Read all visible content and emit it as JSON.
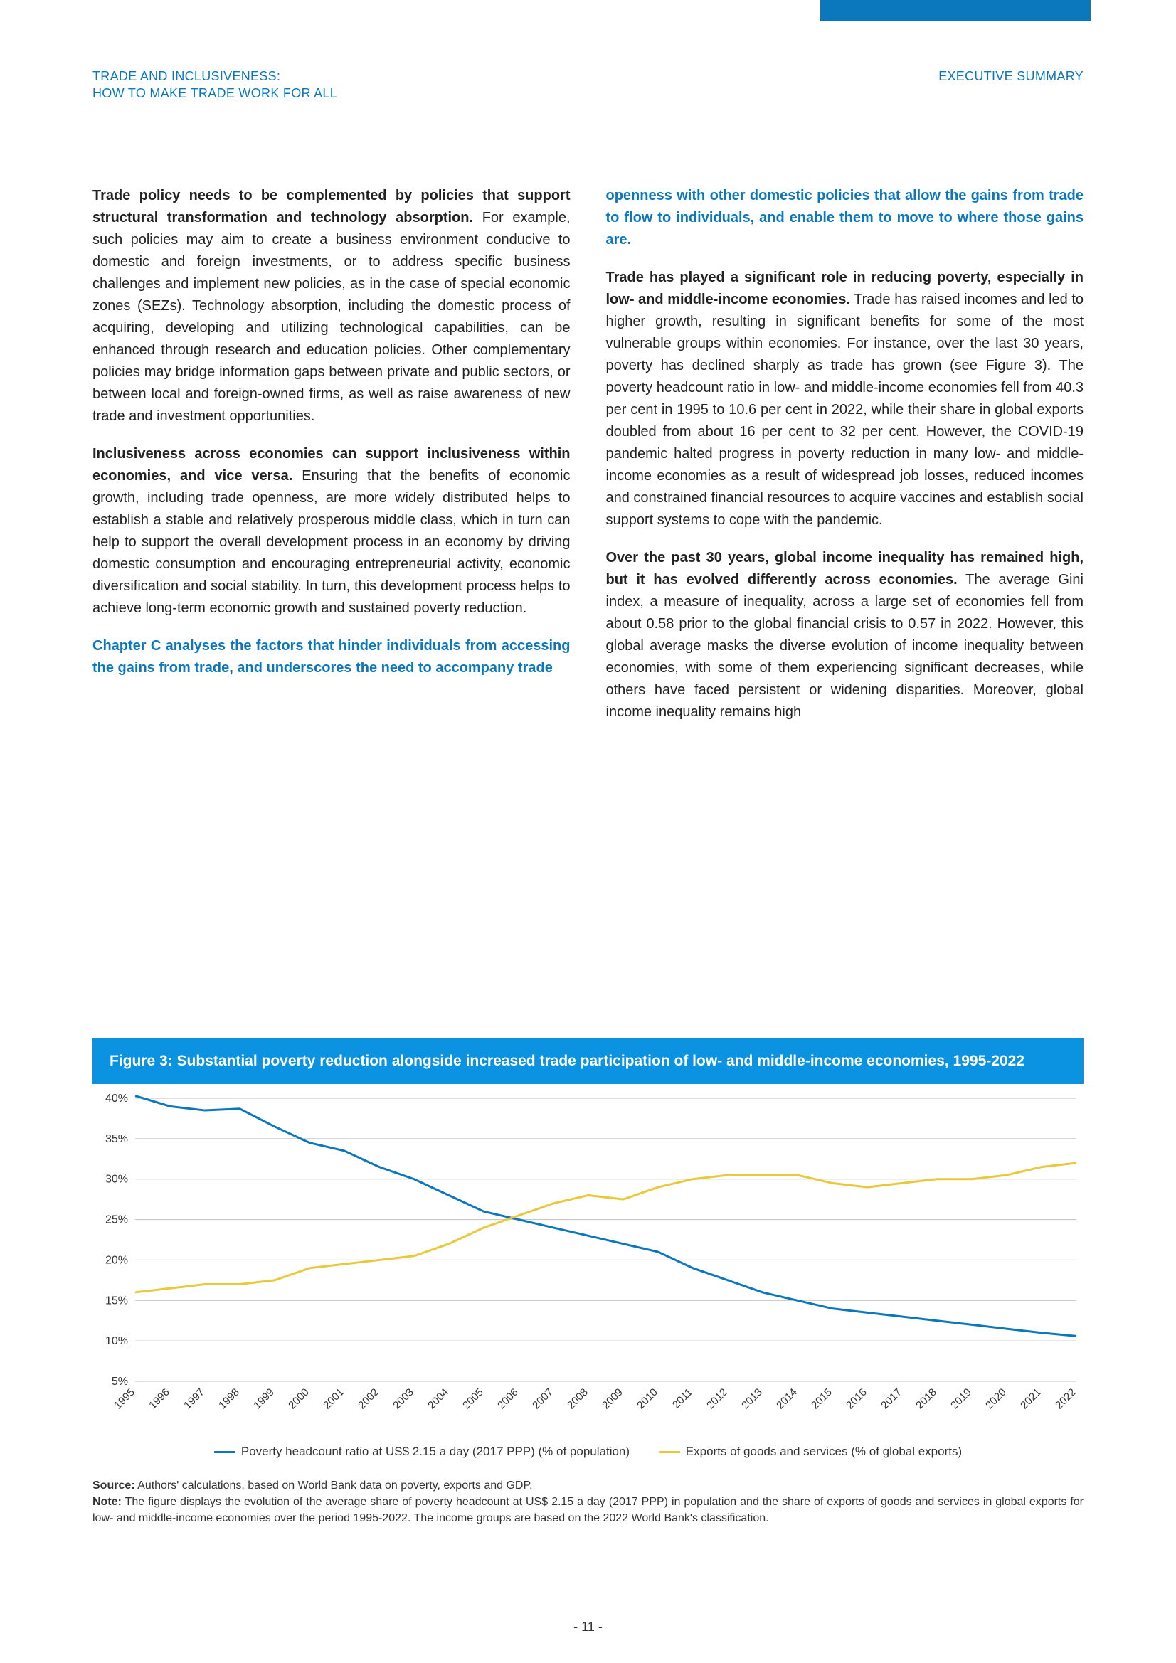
{
  "header": {
    "left_line1": "TRADE AND INCLUSIVENESS:",
    "left_line2": "HOW TO MAKE TRADE WORK FOR ALL",
    "right": "EXECUTIVE SUMMARY"
  },
  "left_col": {
    "p1_lead": "Trade policy needs to be complemented by policies that support structural transformation and technology absorption.",
    "p1_body": " For example, such policies may aim to create a business environment conducive to domestic and foreign investments, or to address specific business challenges and implement new policies, as in the case of special economic zones (SEZs). Technology absorption, including the domestic process of acquiring, developing and utilizing technological capabilities, can be enhanced through research and education policies. Other complementary policies may bridge information gaps between private and public sectors, or between local and foreign-owned firms, as well as raise awareness of new trade and investment opportunities.",
    "p2_lead": "Inclusiveness across economies can support inclusiveness within economies, and vice versa.",
    "p2_body": " Ensuring that the benefits of economic growth, including trade openness, are more widely distributed helps to establish a stable and relatively prosperous middle class, which in turn can help to support the overall development process in an economy by driving domestic consumption and encouraging entrepreneurial activity, economic diversification and social stability. In turn, this development process helps to achieve long-term economic growth and sustained poverty reduction.",
    "p3_blue": "Chapter C analyses the factors that hinder individuals from accessing the gains from trade, and underscores the need to accompany trade"
  },
  "right_col": {
    "p1_blue": "openness with other domestic policies that allow the gains from trade to flow to individuals, and enable them to move to where those gains are.",
    "p2_lead": "Trade has played a significant role in reducing poverty, especially in low- and middle-income economies.",
    "p2_body": " Trade has raised incomes and led to higher growth, resulting in significant benefits for some of the most vulnerable groups within economies. For instance, over the last 30 years, poverty has declined sharply as trade has grown (see Figure 3). The poverty headcount ratio in low- and middle-income economies fell from 40.3 per cent in 1995 to 10.6 per cent in 2022, while their share in global exports doubled from about 16 per cent to 32 per cent. However, the COVID-19 pandemic halted progress in poverty reduction in many low- and middle-income economies as a result of widespread job losses, reduced incomes and constrained financial resources to acquire vaccines and establish social support systems to cope with the pandemic.",
    "p3_lead": "Over the past 30 years, global income inequality has remained high, but it has evolved differently across economies.",
    "p3_body": " The average Gini index, a measure of inequality, across a large set of economies fell from about 0.58 prior to the global financial crisis to 0.57 in 2022. However, this global average masks the diverse evolution of income inequality between economies, with some of them experiencing significant decreases, while others have faced persistent or widening disparities. Moreover, global income inequality remains high"
  },
  "figure": {
    "title": "Figure 3: Substantial poverty reduction alongside increased trade participation of low- and middle-income economies, 1995-2022",
    "type": "line",
    "y_ticks": [
      5,
      10,
      15,
      20,
      25,
      30,
      35,
      40
    ],
    "y_tick_labels": [
      "5%",
      "10%",
      "15%",
      "20%",
      "25%",
      "30%",
      "35%",
      "40%"
    ],
    "ylim": [
      5,
      40
    ],
    "x_years": [
      1995,
      1996,
      1997,
      1998,
      1999,
      2000,
      2001,
      2002,
      2003,
      2004,
      2005,
      2006,
      2007,
      2008,
      2009,
      2010,
      2011,
      2012,
      2013,
      2014,
      2015,
      2016,
      2017,
      2018,
      2019,
      2020,
      2021,
      2022
    ],
    "series": [
      {
        "name": "poverty",
        "label": "Poverty headcount ratio at US$ 2.15 a day (2017 PPP) (% of population)",
        "color": "#0b77bd",
        "values": [
          40.3,
          39.0,
          38.5,
          38.7,
          36.5,
          34.5,
          33.5,
          31.5,
          30.0,
          28.0,
          26.0,
          25.0,
          24.0,
          23.0,
          22.0,
          21.0,
          19.0,
          17.5,
          16.0,
          15.0,
          14.0,
          13.5,
          13.0,
          12.5,
          12.0,
          11.5,
          11.0,
          10.6
        ]
      },
      {
        "name": "exports",
        "label": "Exports of goods and services (% of global exports)",
        "color": "#e8c93a",
        "values": [
          16.0,
          16.5,
          17.0,
          17.0,
          17.5,
          19.0,
          19.5,
          20.0,
          20.5,
          22.0,
          24.0,
          25.5,
          27.0,
          28.0,
          27.5,
          29.0,
          30.0,
          30.5,
          30.5,
          30.5,
          29.5,
          29.0,
          29.5,
          30.0,
          30.0,
          30.5,
          31.5,
          32.0
        ]
      }
    ],
    "legend_colors": {
      "poverty": "#0b77bd",
      "exports": "#e8c93a"
    },
    "grid_color": "#bfbfbf",
    "axis_color": "#888888",
    "background": "#ffffff",
    "line_width": 3
  },
  "notes": {
    "source_label": "Source:",
    "source_text": " Authors' calculations, based on World Bank data on poverty, exports and GDP.",
    "note_label": "Note:",
    "note_text": " The figure displays the evolution of the average share of poverty headcount at US$ 2.15 a day (2017 PPP) in population and the share of exports of goods and services in global exports for low- and middle-income economies over the period 1995-2022. The income groups are based on the 2022 World Bank's classification."
  },
  "page_number": "- 11 -"
}
